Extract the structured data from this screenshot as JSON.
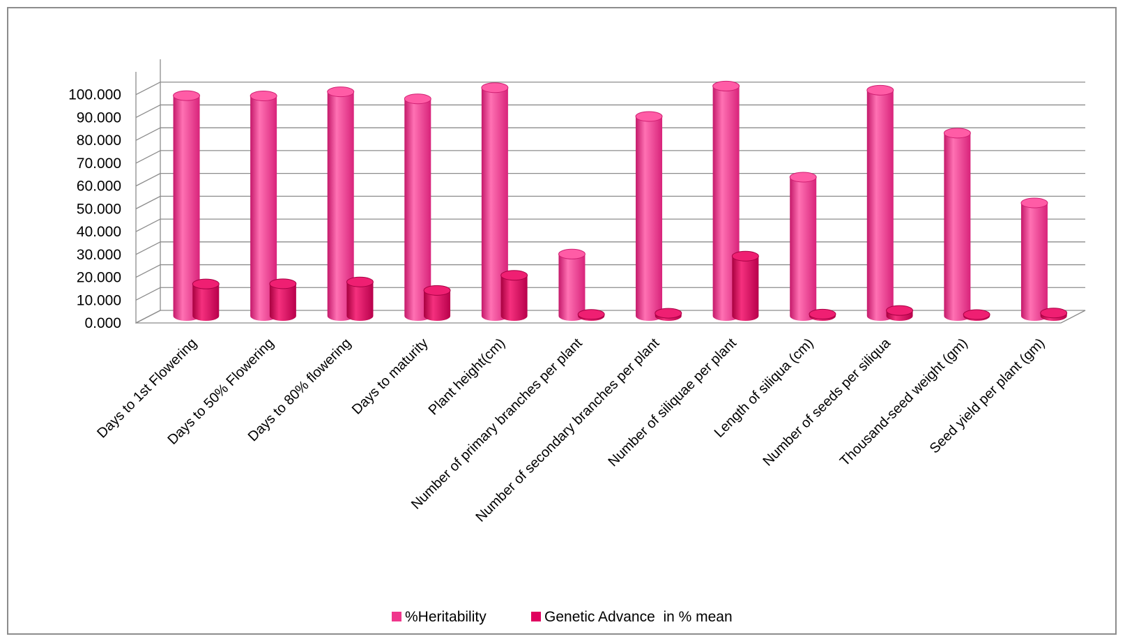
{
  "chart_data": {
    "type": "bar",
    "categories": [
      "Days to 1st Flowering",
      "Days to 50% Flowering",
      "Days to 80% flowering",
      "Days to maturity",
      "Plant height(cm)",
      "Number of primary branches per plant",
      "Number of secondary branches per plant",
      "Number of siliquae per plant",
      "Length of siliqua (cm)",
      "Number of seeds per siliqua",
      "Thousand-seed weight (gm)",
      "Seed yield per plant  (gm)"
    ],
    "series": [
      {
        "name": "%Heritability",
        "values": [
          96.5,
          96.4,
          98.2,
          95.1,
          100.0,
          27.1,
          87.4,
          100.7,
          60.8,
          98.9,
          80.1,
          49.5
        ],
        "color": "#f0368c"
      },
      {
        "name": "Genetic Advance  in % mean",
        "values": [
          14.0,
          14.1,
          14.9,
          11.2,
          17.8,
          0.7,
          1.2,
          26.2,
          0.8,
          2.4,
          0.6,
          1.3
        ],
        "color": "#e0005f"
      }
    ],
    "ytick_labels": [
      "0.000",
      "10.000",
      "20.000",
      "30.000",
      "40.000",
      "50.000",
      "60.000",
      "70.000",
      "80.000",
      "90.000",
      "100.000"
    ],
    "ylim": [
      0,
      110
    ],
    "grid": true,
    "legend_position": "bottom",
    "title": "",
    "xlabel": "",
    "ylabel": ""
  }
}
